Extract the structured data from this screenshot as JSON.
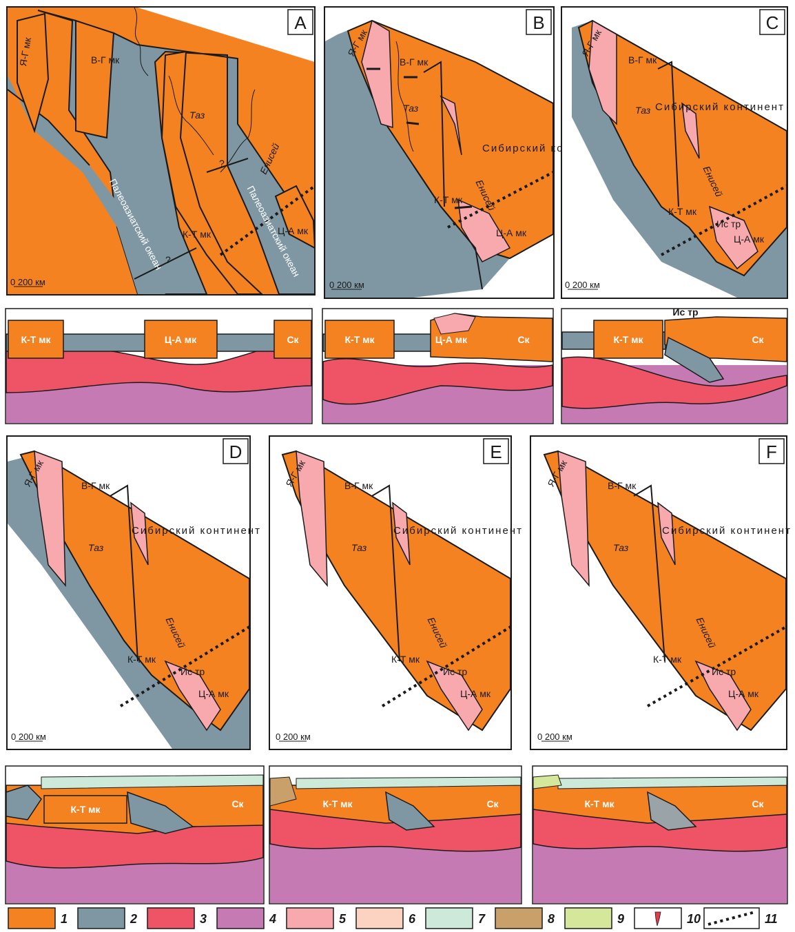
{
  "panels": {
    "A": {
      "letter": "A",
      "labels": {
        "yg": "Я-Г мк",
        "vg": "В-Г мк",
        "kt": "К-Т мк",
        "ca": "Ц-А мк",
        "taz": "Таз",
        "enisey": "Енисей",
        "ocean1": "Палеоазиатский океан",
        "ocean2": "Палеоазиатский океан",
        "q": "?"
      },
      "scale": "0    200 км"
    },
    "B": {
      "letter": "B",
      "labels": {
        "yg": "Я-Г мк",
        "vg": "В-Г мк",
        "kt": "К-Т мк",
        "ca": "Ц-А мк",
        "taz": "Таз",
        "enisey": "Енисей",
        "sib": "Сибирский континент"
      },
      "scale": "0    200 км"
    },
    "C": {
      "letter": "C",
      "labels": {
        "yg": "Я-Г мк",
        "vg": "В-Г мк",
        "kt": "К-Т мк",
        "ca": "Ц-А мк",
        "ist": "Ис тр",
        "taz": "Таз",
        "enisey": "Енисей",
        "sib": "Сибирский континент"
      },
      "scale": "0    200 км"
    },
    "D": {
      "letter": "D",
      "labels": {
        "yg": "Я-Г мк",
        "vg": "В-Г мк",
        "kt": "К-Т мк",
        "ca": "Ц-А мк",
        "ist": "Ис тр",
        "taz": "Таз",
        "enisey": "Енисей",
        "sib": "Сибирский континент"
      },
      "scale": "0    200 км"
    },
    "E": {
      "letter": "E",
      "labels": {
        "yg": "Я-Г мк",
        "vg": "В-Г мк",
        "kt": "К-Т мк",
        "ca": "Ц-А мк",
        "ist": "Ис тр",
        "taz": "Таз",
        "enisey": "Енисей",
        "sib": "Сибирский континент"
      },
      "scale": "0    200 км"
    },
    "F": {
      "letter": "F",
      "labels": {
        "yg": "Я-Г мк",
        "vg": "В-Г мк",
        "kt": "К-Т мк",
        "ca": "Ц-А мк",
        "ist": "Ис тр",
        "taz": "Таз",
        "enisey": "Енисей",
        "sib": "Сибирский континент"
      },
      "scale": "0    200 км"
    }
  },
  "sections": {
    "s1": {
      "kt": "К-Т мк",
      "ca": "Ц-А мк",
      "sk": "Ск"
    },
    "s2": {
      "kt": "К-Т мк",
      "ca": "Ц-А мк",
      "sk": "Ск"
    },
    "s3": {
      "kt": "К-Т мк",
      "ist": "Ис тр",
      "sk": "Ск"
    },
    "s4": {
      "kt": "К-Т мк",
      "sk": "Ск"
    },
    "s5": {
      "kt": "К-Т мк",
      "sk": "Ск"
    },
    "s6": {
      "kt": "К-Т мк",
      "sk": "Ск"
    }
  },
  "legend": [
    {
      "num": "1",
      "color": "#f58220"
    },
    {
      "num": "2",
      "color": "#7f97a3"
    },
    {
      "num": "3",
      "color": "#ee5466"
    },
    {
      "num": "4",
      "color": "#c57ab4"
    },
    {
      "num": "5",
      "color": "#f7a9ae"
    },
    {
      "num": "6",
      "color": "#fcd2c0"
    },
    {
      "num": "7",
      "color": "#cde9d9"
    },
    {
      "num": "8",
      "color": "#c9a06a"
    },
    {
      "num": "9",
      "color": "#d5e79a"
    },
    {
      "num": "10",
      "color": "#e23a4a"
    },
    {
      "num": "11",
      "color": "#1a1a1a"
    }
  ],
  "colors": {
    "orange": "#f58220",
    "gray": "#7f97a3",
    "red": "#ee5466",
    "purple": "#c57ab4",
    "pink": "#f7a9ae"
  }
}
